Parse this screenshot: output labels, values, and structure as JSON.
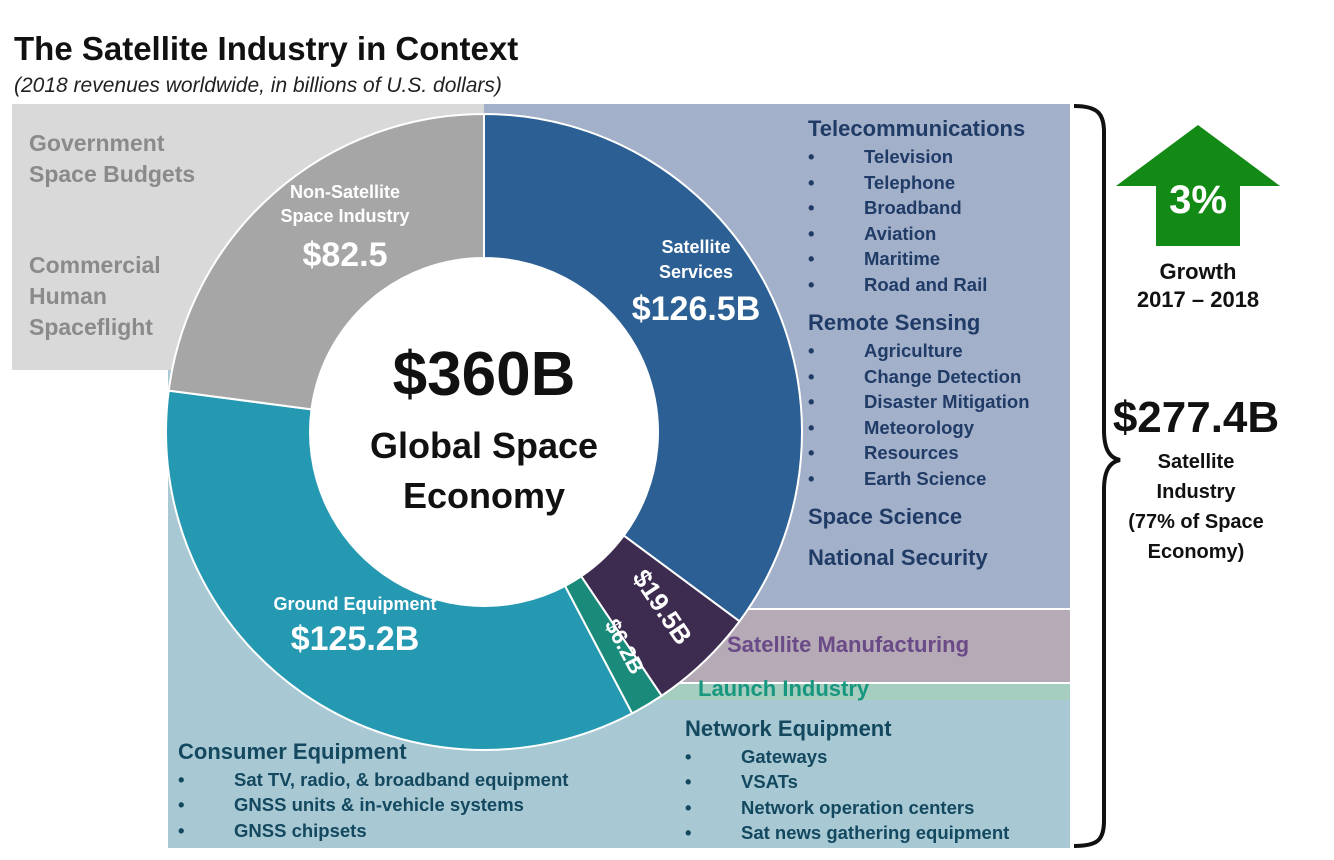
{
  "header": {
    "title": "The Satellite Industry in Context",
    "subtitle": "(2018 revenues worldwide, in billions of U.S. dollars)"
  },
  "center": {
    "value": "$360B",
    "line1": "Global Space",
    "line2": "Economy"
  },
  "government": {
    "line1": "Government Space Budgets",
    "line2": "Commercial Human Spaceflight"
  },
  "growth": {
    "percent": "3%",
    "label": "Growth",
    "years": "2017 – 2018",
    "color": "#138a15"
  },
  "satellite_industry": {
    "value": "$277.4B",
    "label1": "Satellite",
    "label2": "Industry",
    "label3": "(77% of Space",
    "label4": "Economy)"
  },
  "telecom": {
    "heading": "Telecommunications",
    "items": [
      "Television",
      "Telephone",
      "Broadband",
      "Aviation",
      "Maritime",
      "Road and Rail"
    ]
  },
  "remote_sensing": {
    "heading": "Remote Sensing",
    "items": [
      "Agriculture",
      "Change Detection",
      "Disaster Mitigation",
      "Meteorology",
      "Resources",
      "Earth Science"
    ]
  },
  "space_science": "Space Science",
  "national_security": "National Security",
  "satellite_manufacturing": "Satellite Manufacturing",
  "launch_industry": "Launch Industry",
  "network_equipment": {
    "heading": "Network Equipment",
    "items": [
      "Gateways",
      "VSATs",
      "Network operation centers",
      "Sat news gathering equipment"
    ]
  },
  "consumer_equipment": {
    "heading": "Consumer Equipment",
    "items": [
      "Sat TV, radio, & broadband equipment",
      "GNSS units & in-vehicle systems",
      "GNSS chipsets"
    ]
  },
  "colors": {
    "satellite_services": "#2c5f93",
    "satellite_manufacturing": "#3d2c50",
    "launch": "#1a8a7a",
    "ground_equipment": "#2699b2",
    "non_satellite": "#a6a6a6"
  },
  "chart_data": {
    "type": "pie",
    "donut": true,
    "total_label": "$360B",
    "unit": "billions of U.S. dollars",
    "slices": [
      {
        "name": "Satellite Services",
        "value": 126.5,
        "label": "$126.5B",
        "label_line1": "Satellite",
        "label_line2": "Services",
        "color": "#2c5f93"
      },
      {
        "name": "",
        "value": 19.5,
        "label": "$19.5B",
        "color": "#3d2c50"
      },
      {
        "name": "",
        "value": 6.2,
        "label": "$6.2B",
        "color": "#1a8a7a"
      },
      {
        "name": "Ground Equipment",
        "value": 125.2,
        "label": "$125.2B",
        "label_line1": "Ground Equipment",
        "color": "#2699b2"
      },
      {
        "name": "Non-Satellite Space Industry",
        "value": 82.5,
        "label": "$82.5",
        "label_line1": "Non-Satellite",
        "label_line2": "Space Industry",
        "color": "#a6a6a6"
      }
    ]
  }
}
